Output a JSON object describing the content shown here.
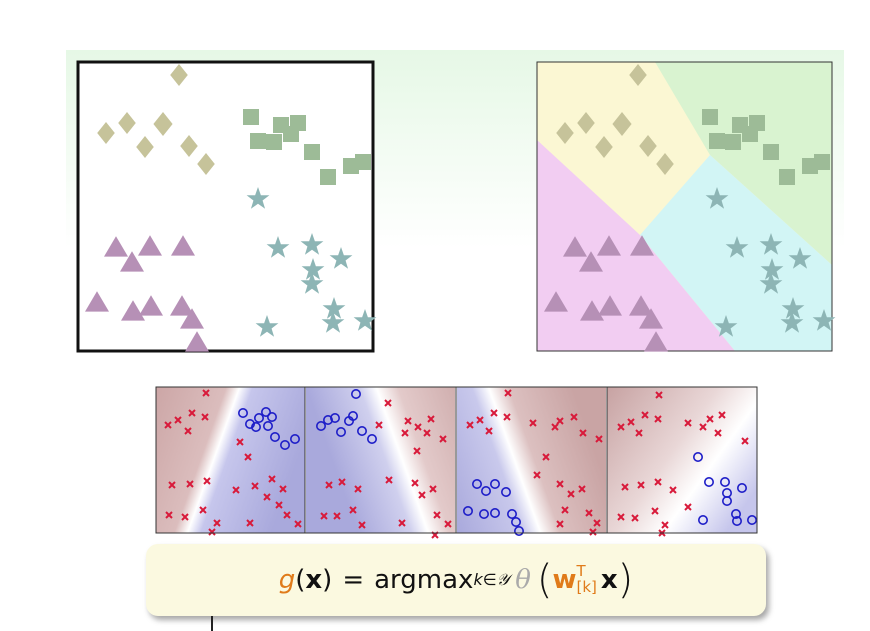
{
  "formula": {
    "g": "g",
    "x_open": "(",
    "x_var": "x",
    "x_close": ")",
    "equals": "=",
    "argmax": "argmax",
    "subscript": "k∈𝒴",
    "theta": "θ",
    "w": "w",
    "sup": "T",
    "sub": "[k]",
    "x_end": "x"
  },
  "colors": {
    "diamond": "#c6c39a",
    "square": "#9dbb97",
    "triangle": "#b690b6",
    "star": "#8db5b5",
    "region_yellow": "#fbf7d3",
    "region_green": "#d9f3d0",
    "region_pink": "#f2cdf2",
    "region_cyan": "#d2f5f5",
    "cross": "#d81a3a",
    "circle": "#1e1ec8",
    "panel_red": "#c9a3a3",
    "panel_blue": "#aaaae0"
  }
}
